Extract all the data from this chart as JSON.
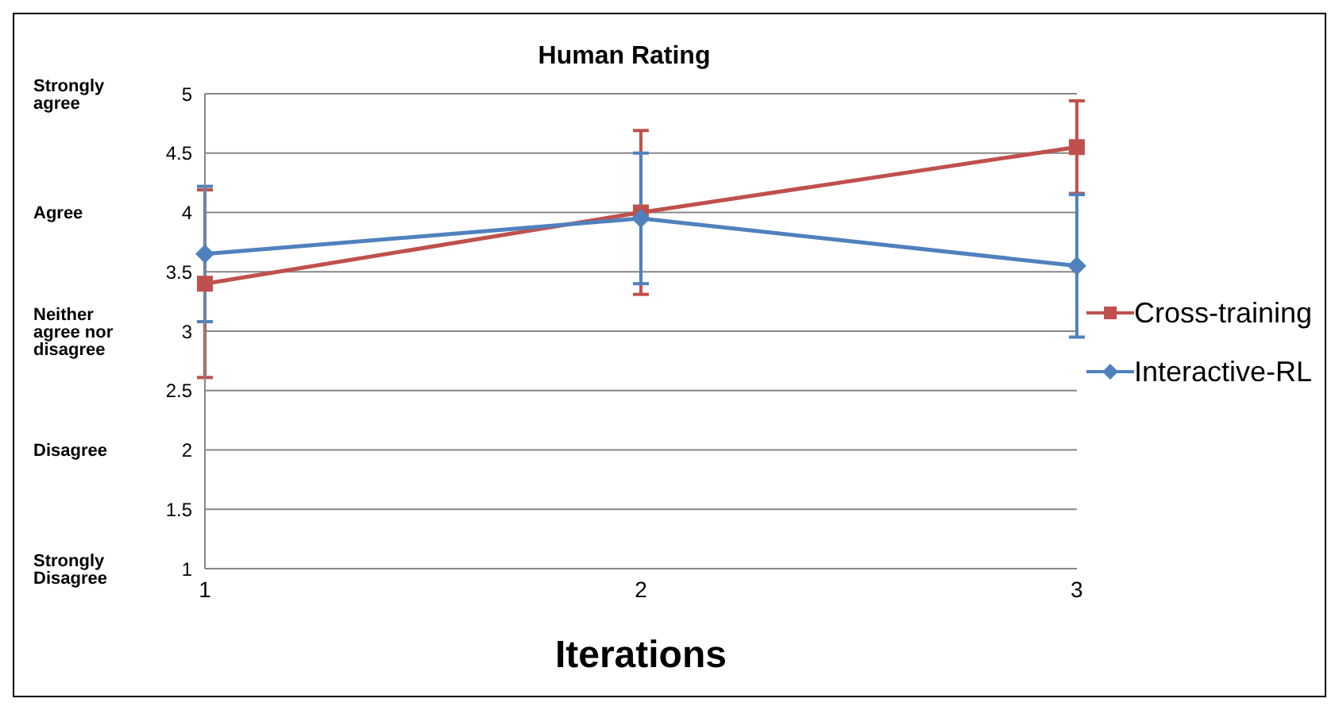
{
  "chart_data": {
    "type": "line",
    "title": "Human Rating",
    "xlabel": "Iterations",
    "categories": [
      "1",
      "2",
      "3"
    ],
    "series": [
      {
        "name": "Cross-training",
        "color": "#c0504d",
        "marker": "square",
        "values": [
          3.4,
          4.0,
          4.55
        ],
        "errors": [
          0.79,
          0.69,
          0.39
        ]
      },
      {
        "name": "Interactive-RL",
        "color": "#4f81bd",
        "marker": "diamond",
        "values": [
          3.65,
          3.95,
          3.55
        ],
        "errors": [
          0.57,
          0.55,
          0.6
        ]
      }
    ],
    "ylim": [
      1,
      5
    ],
    "yticks": [
      1,
      1.5,
      2,
      2.5,
      3,
      3.5,
      4,
      4.5,
      5
    ],
    "annotations": [
      "Strongly agree",
      "Agree",
      "Neither agree nor disagree",
      "Disagree",
      "Strongly Disagree"
    ],
    "grid": "y",
    "legend": "right",
    "line_style": "solid"
  }
}
